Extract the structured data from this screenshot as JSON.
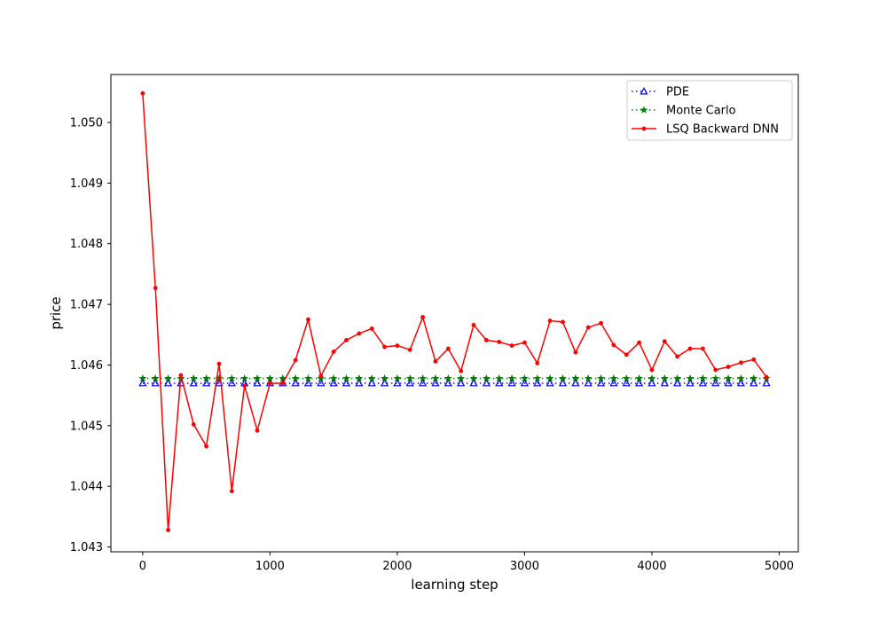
{
  "chart_data": {
    "type": "line",
    "xlabel": "learning step",
    "ylabel": "price",
    "xlim": [
      -250,
      5150
    ],
    "ylim": [
      1.04292,
      1.05079
    ],
    "x_ticks": [
      0,
      1000,
      2000,
      3000,
      4000,
      5000
    ],
    "x_tick_labels": [
      "0",
      "1000",
      "2000",
      "3000",
      "4000",
      "5000"
    ],
    "y_ticks": [
      1.043,
      1.044,
      1.045,
      1.046,
      1.047,
      1.048,
      1.049,
      1.05
    ],
    "y_tick_labels": [
      "1.043",
      "1.044",
      "1.045",
      "1.046",
      "1.047",
      "1.048",
      "1.049",
      "1.050"
    ],
    "grid": false,
    "legend_position": "top-right",
    "x": [
      0,
      100,
      200,
      300,
      400,
      500,
      600,
      700,
      800,
      900,
      1000,
      1100,
      1200,
      1300,
      1400,
      1500,
      1600,
      1700,
      1800,
      1900,
      2000,
      2100,
      2200,
      2300,
      2400,
      2500,
      2600,
      2700,
      2800,
      2900,
      3000,
      3100,
      3200,
      3300,
      3400,
      3500,
      3600,
      3700,
      3800,
      3900,
      4000,
      4100,
      4200,
      4300,
      4400,
      4500,
      4600,
      4700,
      4800,
      4900
    ],
    "series": [
      {
        "name": "PDE",
        "color": "#0000ff",
        "style": "dotted",
        "marker": "triangle",
        "values": [
          1.0457,
          1.0457,
          1.0457,
          1.0457,
          1.0457,
          1.0457,
          1.0457,
          1.0457,
          1.0457,
          1.0457,
          1.0457,
          1.0457,
          1.0457,
          1.0457,
          1.0457,
          1.0457,
          1.0457,
          1.0457,
          1.0457,
          1.0457,
          1.0457,
          1.0457,
          1.0457,
          1.0457,
          1.0457,
          1.0457,
          1.0457,
          1.0457,
          1.0457,
          1.0457,
          1.0457,
          1.0457,
          1.0457,
          1.0457,
          1.0457,
          1.0457,
          1.0457,
          1.0457,
          1.0457,
          1.0457,
          1.0457,
          1.0457,
          1.0457,
          1.0457,
          1.0457,
          1.0457,
          1.0457,
          1.0457,
          1.0457,
          1.0457
        ]
      },
      {
        "name": "Monte Carlo",
        "color": "#008000",
        "style": "dotted",
        "marker": "star",
        "values": [
          1.04578,
          1.04578,
          1.04578,
          1.04578,
          1.04578,
          1.04578,
          1.04578,
          1.04578,
          1.04578,
          1.04578,
          1.04578,
          1.04578,
          1.04578,
          1.04578,
          1.04578,
          1.04578,
          1.04578,
          1.04578,
          1.04578,
          1.04578,
          1.04578,
          1.04578,
          1.04578,
          1.04578,
          1.04578,
          1.04578,
          1.04578,
          1.04578,
          1.04578,
          1.04578,
          1.04578,
          1.04578,
          1.04578,
          1.04578,
          1.04578,
          1.04578,
          1.04578,
          1.04578,
          1.04578,
          1.04578,
          1.04578,
          1.04578,
          1.04578,
          1.04578,
          1.04578,
          1.04578,
          1.04578,
          1.04578,
          1.04578,
          1.04578
        ]
      },
      {
        "name": "LSQ Backward DNN",
        "color": "#ff0000",
        "style": "solid",
        "marker": "dot",
        "values": [
          1.05048,
          1.04727,
          1.04328,
          1.04583,
          1.04502,
          1.04466,
          1.04602,
          1.04392,
          1.04566,
          1.04492,
          1.0457,
          1.0457,
          1.04608,
          1.04675,
          1.04582,
          1.04622,
          1.04641,
          1.04652,
          1.0466,
          1.0463,
          1.04632,
          1.04625,
          1.04679,
          1.04606,
          1.04627,
          1.0459,
          1.04666,
          1.04641,
          1.04638,
          1.04632,
          1.04637,
          1.04603,
          1.04673,
          1.04671,
          1.04621,
          1.04662,
          1.04669,
          1.04633,
          1.04617,
          1.04637,
          1.04592,
          1.04639,
          1.04614,
          1.04627,
          1.04627,
          1.04592,
          1.04597,
          1.04604,
          1.04609,
          1.0458
        ]
      }
    ]
  }
}
